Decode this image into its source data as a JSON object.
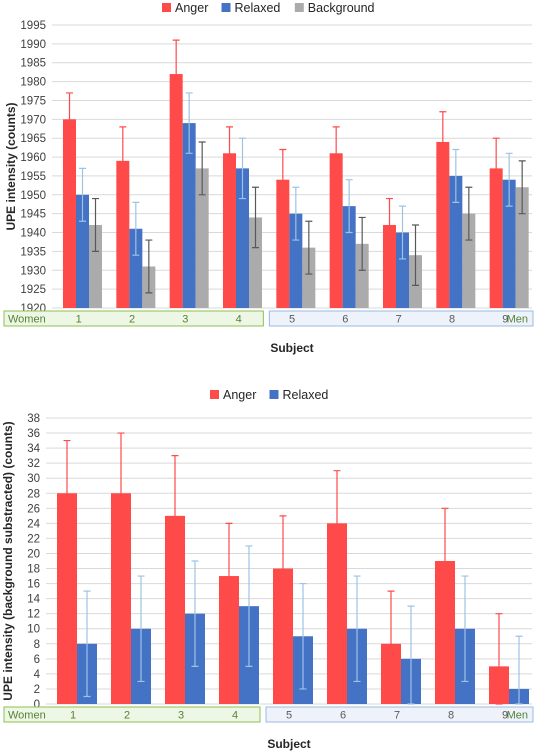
{
  "colors": {
    "anger": "#FF4A4A",
    "anger_edge": "#C00000",
    "relaxed": "#4472C4",
    "relaxed_err": "#9DC3E6",
    "background": "#ABABAB",
    "background_err": "#595959",
    "women_fill": "#EEF7E6",
    "women_border": "#8CC152",
    "women_text": "#548235",
    "men_fill": "#EEF3FB",
    "men_border": "#9DB9E1",
    "men_text": "#548235",
    "grid": "#D9D9D9"
  },
  "chart_data": [
    {
      "type": "bar",
      "categories": [
        "1",
        "2",
        "3",
        "4",
        "5",
        "6",
        "7",
        "8",
        "9"
      ],
      "series": [
        {
          "name": "Anger",
          "values": [
            1970,
            1959,
            1982,
            1961,
            1954,
            1961,
            1942,
            1964,
            1957
          ],
          "errors": [
            7,
            9,
            9,
            7,
            8,
            7,
            7,
            8,
            8
          ]
        },
        {
          "name": "Relaxed",
          "values": [
            1950,
            1941,
            1969,
            1957,
            1945,
            1947,
            1940,
            1955,
            1954
          ],
          "errors": [
            7,
            7,
            8,
            8,
            7,
            7,
            7,
            7,
            7
          ]
        },
        {
          "name": "Background",
          "values": [
            1942,
            1931,
            1957,
            1944,
            1936,
            1937,
            1934,
            1945,
            1952
          ],
          "errors": [
            7,
            7,
            7,
            8,
            7,
            7,
            8,
            7,
            7
          ]
        }
      ],
      "ylabel": "UPE intensity (counts)",
      "xlabel": "Subject",
      "ylim": [
        1920,
        1995
      ],
      "yticks": [
        "1920",
        "1925",
        "1930",
        "1935",
        "1940",
        "1945",
        "1950",
        "1955",
        "1960",
        "1965",
        "1970",
        "1975",
        "1980",
        "1985",
        "1990",
        "1995"
      ],
      "groups": [
        {
          "label": "Women",
          "position": "left"
        },
        {
          "label": "Men",
          "position": "right"
        }
      ],
      "legend": "top",
      "grid": true
    },
    {
      "type": "bar",
      "categories": [
        "1",
        "2",
        "3",
        "4",
        "5",
        "6",
        "7",
        "8",
        "9"
      ],
      "series": [
        {
          "name": "Anger",
          "values": [
            28,
            28,
            25,
            17,
            18,
            24,
            8,
            19,
            5
          ],
          "errors": [
            7,
            8,
            8,
            7,
            7,
            7,
            7,
            7,
            7
          ]
        },
        {
          "name": "Relaxed",
          "values": [
            8,
            10,
            12,
            13,
            9,
            10,
            6,
            10,
            2
          ],
          "errors": [
            7,
            7,
            7,
            8,
            7,
            7,
            7,
            7,
            7
          ]
        }
      ],
      "ylabel": "UPE intensity (background substracted) (counts)",
      "xlabel": "Subject",
      "ylim": [
        0,
        38
      ],
      "yticks": [
        "0",
        "2",
        "4",
        "6",
        "8",
        "10",
        "12",
        "14",
        "16",
        "18",
        "20",
        "22",
        "24",
        "26",
        "28",
        "30",
        "32",
        "34",
        "36",
        "38"
      ],
      "groups": [
        {
          "label": "Women",
          "position": "left"
        },
        {
          "label": "Men",
          "position": "right"
        }
      ],
      "legend": "top",
      "grid": true
    }
  ]
}
